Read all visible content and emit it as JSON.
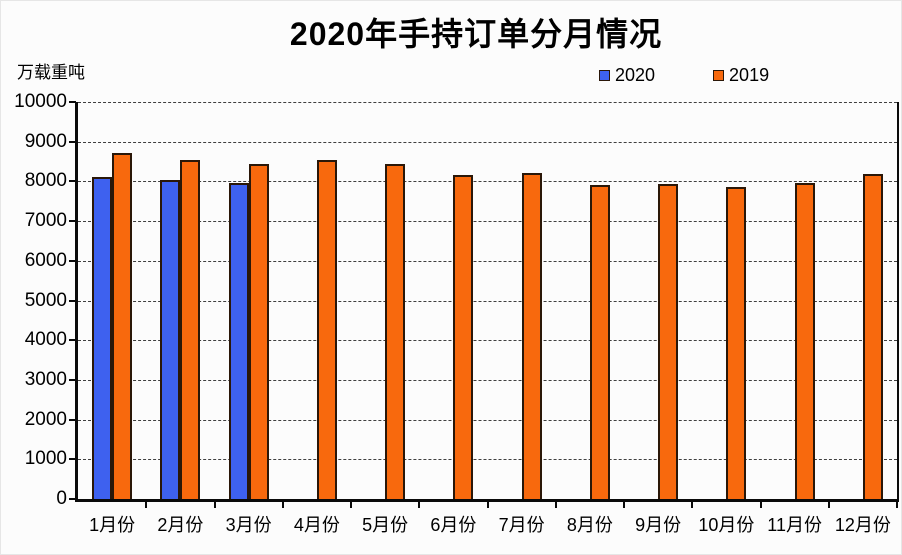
{
  "chart_data": {
    "type": "bar",
    "title": "2020年手持订单分月情况",
    "ylabel": "万载重吨",
    "xlabel": "",
    "categories": [
      "1月份",
      "2月份",
      "3月份",
      "4月份",
      "5月份",
      "6月份",
      "7月份",
      "8月份",
      "9月份",
      "10月份",
      "11月份",
      "12月份"
    ],
    "series": [
      {
        "name": "2020",
        "color": "#3e61ef",
        "values": [
          8100,
          8030,
          7955,
          null,
          null,
          null,
          null,
          null,
          null,
          null,
          null,
          null
        ]
      },
      {
        "name": "2019",
        "color": "#f8690d",
        "values": [
          8720,
          8530,
          8430,
          8550,
          8450,
          8170,
          8200,
          7900,
          7940,
          7870,
          7960,
          8180
        ]
      }
    ],
    "ylim": [
      0,
      10000
    ],
    "ytick_step": 1000,
    "yticks": [
      0,
      1000,
      2000,
      3000,
      4000,
      5000,
      6000,
      7000,
      8000,
      9000,
      10000
    ],
    "grid": "horizontal-dashed",
    "legend_position": "top-right",
    "colors": {
      "bar_border": "#2a1708",
      "axis": "#0a0a0a",
      "gridline": "#3f3f3f",
      "background": "#fcfcfc",
      "text": "#000000"
    }
  }
}
